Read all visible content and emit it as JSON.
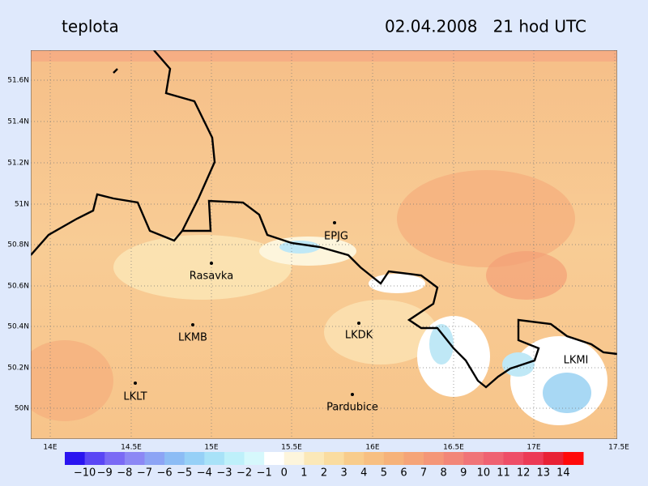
{
  "header": {
    "title": "teplota",
    "time": "02.04.2008   21 hod UTC"
  },
  "map": {
    "lat_labels": [
      "51.6N",
      "51.4N",
      "51.2N",
      "51N",
      "50.8N",
      "50.6N",
      "50.4N",
      "50.2N",
      "50N"
    ],
    "lon_labels": [
      "14E",
      "14.5E",
      "15E",
      "15.5E",
      "16E",
      "16.5E",
      "17E",
      "17.5E"
    ],
    "stations": [
      {
        "label": "EPJG"
      },
      {
        "label": "Rasavka"
      },
      {
        "label": "LKMB"
      },
      {
        "label": "LKDK"
      },
      {
        "label": "LKLT"
      },
      {
        "label": "Pardubice"
      },
      {
        "label": "LKMI"
      }
    ]
  },
  "colorbar": {
    "labels": [
      "−10",
      "−9",
      "−8",
      "−7",
      "−6",
      "−5",
      "−4",
      "−3",
      "−2",
      "−1",
      "0",
      "1",
      "2",
      "3",
      "4",
      "5",
      "6",
      "7",
      "8",
      "9",
      "10",
      "11",
      "12",
      "13",
      "14"
    ],
    "colors": [
      "#2a14f0",
      "#5a46f5",
      "#7a6af5",
      "#8c88f5",
      "#8ca4f5",
      "#8cbcf5",
      "#96d0f7",
      "#a8e2f8",
      "#bef0fa",
      "#d6f8fc",
      "#ffffff",
      "#fdf5dc",
      "#fbe8b8",
      "#fadca0",
      "#f8cc8c",
      "#f7bf82",
      "#f6b27a",
      "#f5a478",
      "#f49678",
      "#f28678",
      "#f07478",
      "#ef6272",
      "#ee4e68",
      "#ec3a56",
      "#e82236",
      "#ff0a0a"
    ]
  }
}
